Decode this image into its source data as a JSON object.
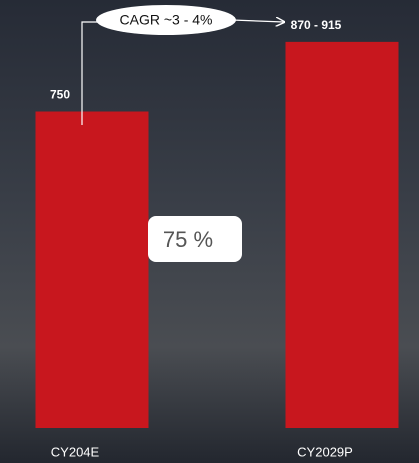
{
  "chart_data": {
    "type": "bar",
    "categories": [
      "CY204E",
      "CY2029P"
    ],
    "values": [
      750,
      915
    ],
    "value_labels": [
      "750",
      "870 - 915"
    ],
    "color": "#c8171e",
    "ylim": [
      0,
      1000
    ],
    "annotations": [
      "CAGR ~3 - 4%",
      "75 %"
    ]
  }
}
